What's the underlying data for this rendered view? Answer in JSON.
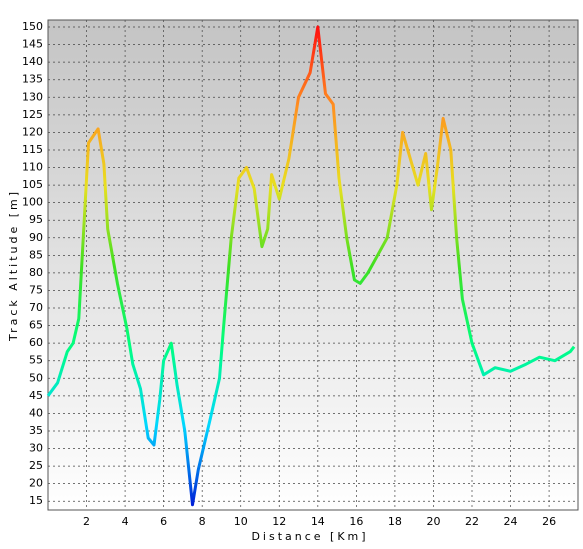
{
  "chart_data": {
    "type": "line",
    "xlabel": "Distance [Km]",
    "ylabel": "Track Altitude [m]",
    "x": [
      0,
      0.5,
      1.0,
      1.3,
      1.6,
      2.1,
      2.6,
      2.9,
      3.1,
      3.6,
      4.1,
      4.4,
      4.8,
      5.2,
      5.5,
      5.8,
      6.0,
      6.4,
      6.7,
      7.1,
      7.5,
      7.8,
      8.4,
      8.9,
      9.1,
      9.5,
      9.9,
      10.3,
      10.7,
      11.1,
      11.4,
      11.6,
      12.0,
      12.5,
      13.0,
      13.6,
      14.0,
      14.4,
      14.8,
      15.1,
      15.5,
      15.9,
      16.2,
      16.6,
      17.1,
      17.6,
      18.1,
      18.4,
      18.8,
      19.2,
      19.6,
      19.9,
      20.2,
      20.5,
      20.9,
      21.2,
      21.5,
      22.0,
      22.6,
      23.2,
      24.0,
      24.8,
      25.5,
      26.3,
      27.1,
      27.3
    ],
    "values": [
      45,
      48.7,
      57.6,
      60,
      67,
      117,
      121,
      111,
      92.5,
      77,
      64,
      54,
      47,
      33,
      31,
      44,
      55,
      60,
      48,
      35,
      14,
      24,
      38,
      50,
      64,
      89.6,
      107,
      110,
      104,
      87.5,
      92.5,
      108,
      101,
      112.5,
      130,
      137,
      150,
      131,
      128,
      107,
      90,
      78,
      77,
      80,
      85,
      90,
      105,
      120,
      112.5,
      105,
      114,
      98,
      110,
      124,
      115,
      90,
      72.5,
      60,
      51,
      53,
      52,
      54,
      56,
      55,
      57.6,
      59
    ],
    "colormap": [
      "#0020d8",
      "#00d8ff",
      "#00ff80",
      "#40e020",
      "#e8e020",
      "#ff9020",
      "#ff1010"
    ],
    "xlim": [
      0,
      27.5
    ],
    "ylim": [
      12.5,
      152
    ],
    "xticks": [
      2,
      4,
      6,
      8,
      10,
      12,
      14,
      16,
      18,
      20,
      22,
      24,
      26
    ],
    "yticks": [
      15,
      20,
      25,
      30,
      35,
      40,
      45,
      50,
      55,
      60,
      65,
      70,
      75,
      80,
      85,
      90,
      95,
      100,
      105,
      110,
      115,
      120,
      125,
      130,
      135,
      140,
      145,
      150
    ],
    "grid": true
  }
}
